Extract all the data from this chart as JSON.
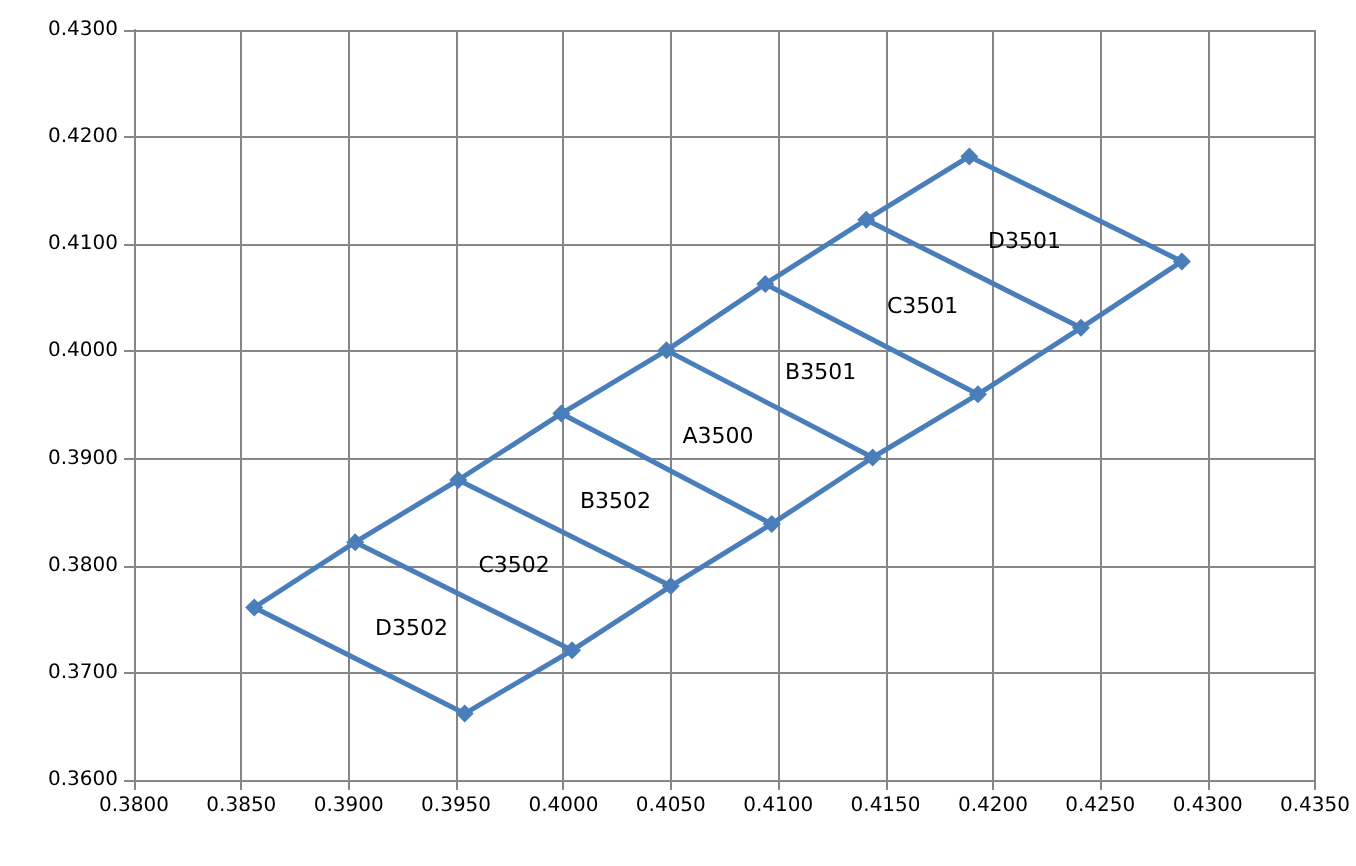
{
  "chart_data": {
    "type": "line",
    "color": "#4a7ebb",
    "marker": "diamond",
    "line_style": "solid",
    "grid": true,
    "xlim": [
      0.38,
      0.435
    ],
    "xticks": [
      {
        "value": 0.38,
        "label": "0.3800"
      },
      {
        "value": 0.385,
        "label": "0.3850"
      },
      {
        "value": 0.39,
        "label": "0.3900"
      },
      {
        "value": 0.395,
        "label": "0.3950"
      },
      {
        "value": 0.4,
        "label": "0.4000"
      },
      {
        "value": 0.405,
        "label": "0.4050"
      },
      {
        "value": 0.41,
        "label": "0.4100"
      },
      {
        "value": 0.415,
        "label": "0.4150"
      },
      {
        "value": 0.42,
        "label": "0.4200"
      },
      {
        "value": 0.425,
        "label": "0.4250"
      },
      {
        "value": 0.43,
        "label": "0.4300"
      },
      {
        "value": 0.435,
        "label": "0.4350"
      }
    ],
    "ylim": [
      0.36,
      0.43
    ],
    "yticks": [
      {
        "value": 0.36,
        "label": "0.3600"
      },
      {
        "value": 0.37,
        "label": "0.3700"
      },
      {
        "value": 0.38,
        "label": "0.3800"
      },
      {
        "value": 0.39,
        "label": "0.3900"
      },
      {
        "value": 0.4,
        "label": "0.4000"
      },
      {
        "value": 0.41,
        "label": "0.4100"
      },
      {
        "value": 0.42,
        "label": "0.4200"
      },
      {
        "value": 0.43,
        "label": "0.4300"
      }
    ],
    "series": [
      {
        "x": [
          0.3856,
          0.3903,
          0.3951,
          0.3999,
          0.4048,
          0.4094,
          0.4141,
          0.4189
        ],
        "values": [
          0.3761,
          0.3822,
          0.388,
          0.3942,
          0.4001,
          0.4063,
          0.4123,
          0.4182
        ]
      },
      {
        "x": [
          0.3954,
          0.4004,
          0.405,
          0.4097,
          0.4144,
          0.4193,
          0.4241,
          0.4288
        ],
        "values": [
          0.3662,
          0.3721,
          0.3781,
          0.3839,
          0.3901,
          0.396,
          0.4022,
          0.4084
        ]
      },
      {
        "x": [
          0.3856,
          0.3954
        ],
        "values": [
          0.3761,
          0.3662
        ],
        "marker": "none"
      },
      {
        "x": [
          0.3903,
          0.4004
        ],
        "values": [
          0.3822,
          0.3721
        ],
        "marker": "none"
      },
      {
        "x": [
          0.3951,
          0.405
        ],
        "values": [
          0.388,
          0.3781
        ],
        "marker": "none"
      },
      {
        "x": [
          0.3999,
          0.4097
        ],
        "values": [
          0.3942,
          0.3839
        ],
        "marker": "none"
      },
      {
        "x": [
          0.4048,
          0.4144
        ],
        "values": [
          0.4001,
          0.3901
        ],
        "marker": "none"
      },
      {
        "x": [
          0.4094,
          0.4193
        ],
        "values": [
          0.4063,
          0.396
        ],
        "marker": "none"
      },
      {
        "x": [
          0.4141,
          0.4241
        ],
        "values": [
          0.4123,
          0.4022
        ],
        "marker": "none"
      },
      {
        "x": [
          0.4189,
          0.4288
        ],
        "values": [
          0.4182,
          0.4084
        ],
        "marker": "none"
      }
    ],
    "annotations": [
      "D3502",
      "C3502",
      "B3502",
      "A3500",
      "B3501",
      "C3501",
      "D3501"
    ]
  }
}
